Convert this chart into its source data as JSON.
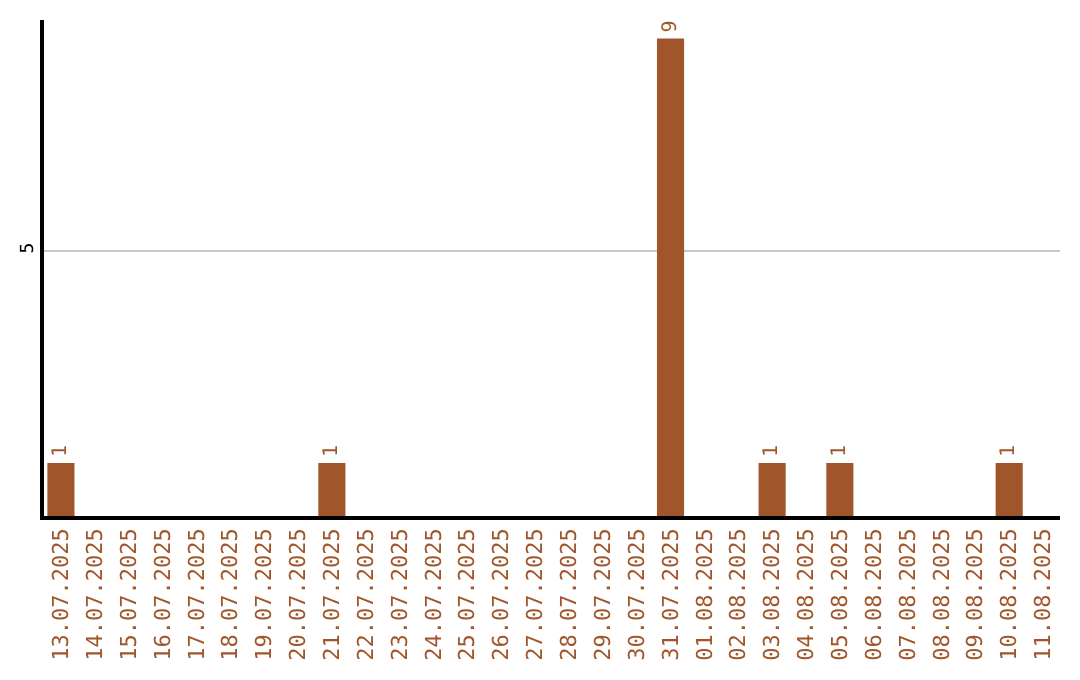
{
  "chart_data": {
    "type": "bar",
    "categories": [
      "13.07.2025",
      "14.07.2025",
      "15.07.2025",
      "16.07.2025",
      "17.07.2025",
      "18.07.2025",
      "19.07.2025",
      "20.07.2025",
      "21.07.2025",
      "22.07.2025",
      "23.07.2025",
      "24.07.2025",
      "25.07.2025",
      "26.07.2025",
      "27.07.2025",
      "28.07.2025",
      "29.07.2025",
      "30.07.2025",
      "31.07.2025",
      "01.08.2025",
      "02.08.2025",
      "03.08.2025",
      "04.08.2025",
      "05.08.2025",
      "06.08.2025",
      "07.08.2025",
      "08.08.2025",
      "09.08.2025",
      "10.08.2025",
      "11.08.2025"
    ],
    "values": [
      1,
      0,
      0,
      0,
      0,
      0,
      0,
      0,
      1,
      0,
      0,
      0,
      0,
      0,
      0,
      0,
      0,
      0,
      9,
      0,
      0,
      1,
      0,
      1,
      0,
      0,
      0,
      0,
      1,
      0
    ],
    "value_labels": [
      "1",
      null,
      null,
      null,
      null,
      null,
      null,
      null,
      "1",
      null,
      null,
      null,
      null,
      null,
      null,
      null,
      null,
      null,
      "9",
      null,
      null,
      "1",
      null,
      "1",
      null,
      null,
      null,
      null,
      "1",
      null
    ],
    "color": "#a0562a",
    "ylim": [
      0,
      9.35
    ],
    "yticks": [
      5
    ],
    "grid": "y",
    "legend": false
  }
}
